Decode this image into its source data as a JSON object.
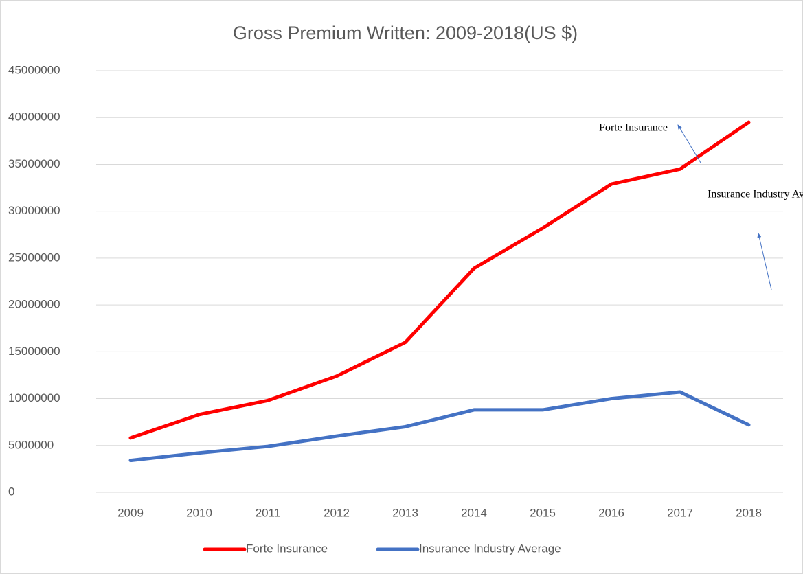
{
  "chart_data": {
    "type": "line",
    "title": "Gross Premium Written: 2009-2018(US $)",
    "categories": [
      "2009",
      "2010",
      "2011",
      "2012",
      "2013",
      "2014",
      "2015",
      "2016",
      "2017",
      "2018"
    ],
    "series": [
      {
        "name": "Forte Insurance",
        "color": "#ff0000",
        "values": [
          5800000,
          8300000,
          9800000,
          12400000,
          16000000,
          23900000,
          28200000,
          32900000,
          34500000,
          39500000
        ]
      },
      {
        "name": "Insurance Industry Average",
        "color": "#4472c4",
        "values": [
          3400000,
          4200000,
          4900000,
          6000000,
          7000000,
          8800000,
          8800000,
          10000000,
          10700000,
          7200000
        ]
      }
    ],
    "ylim": [
      0,
      45000000
    ],
    "yticks": [
      0,
      5000000,
      10000000,
      15000000,
      20000000,
      25000000,
      30000000,
      35000000,
      40000000,
      45000000
    ],
    "grid": true,
    "legend": "bottom",
    "annotations": [
      "Forte Insurance",
      "Insurance Industry Average"
    ]
  }
}
